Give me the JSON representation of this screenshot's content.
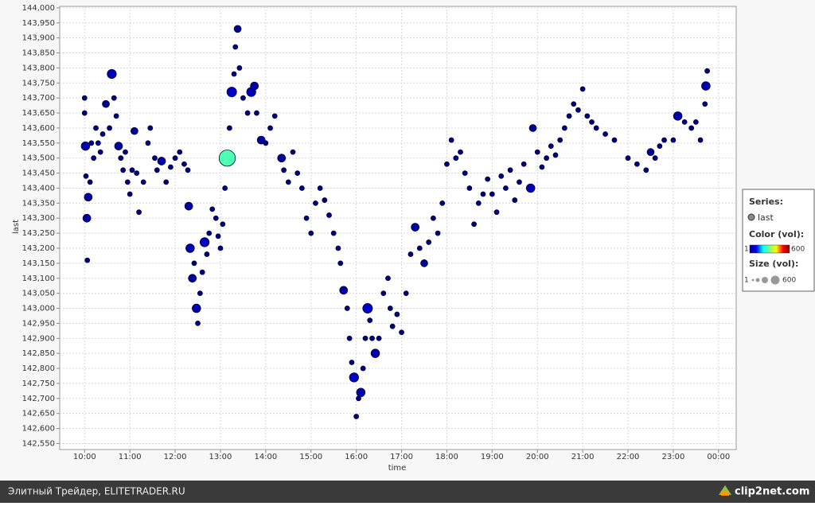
{
  "chart_data": {
    "type": "bubble",
    "x_label": "time",
    "y_label": "last",
    "xlim": [
      9.45,
      24.39
    ],
    "ylim": [
      142530,
      144005
    ],
    "grid": true,
    "xticks": [
      {
        "value": 10,
        "label": "10:00"
      },
      {
        "value": 11,
        "label": "11:00"
      },
      {
        "value": 12,
        "label": "12:00"
      },
      {
        "value": 13,
        "label": "13:00"
      },
      {
        "value": 14,
        "label": "14:00"
      },
      {
        "value": 15,
        "label": "15:00"
      },
      {
        "value": 16,
        "label": "16:00"
      },
      {
        "value": 17,
        "label": "17:00"
      },
      {
        "value": 18,
        "label": "18:00"
      },
      {
        "value": 19,
        "label": "19:00"
      },
      {
        "value": 20,
        "label": "20:00"
      },
      {
        "value": 21,
        "label": "21:00"
      },
      {
        "value": 22,
        "label": "22:00"
      },
      {
        "value": 23,
        "label": "23:00"
      },
      {
        "value": 24,
        "label": "00:00"
      }
    ],
    "yticks": [
      {
        "value": 142550,
        "label": "142,550"
      },
      {
        "value": 142600,
        "label": "142,600"
      },
      {
        "value": 142650,
        "label": "142,650"
      },
      {
        "value": 142700,
        "label": "142,700"
      },
      {
        "value": 142750,
        "label": "142,750"
      },
      {
        "value": 142800,
        "label": "142,800"
      },
      {
        "value": 142850,
        "label": "142,850"
      },
      {
        "value": 142900,
        "label": "142,900"
      },
      {
        "value": 142950,
        "label": "142,950"
      },
      {
        "value": 143000,
        "label": "143,000"
      },
      {
        "value": 143050,
        "label": "143,050"
      },
      {
        "value": 143100,
        "label": "143,100"
      },
      {
        "value": 143150,
        "label": "143,150"
      },
      {
        "value": 143200,
        "label": "143,200"
      },
      {
        "value": 143250,
        "label": "143,250"
      },
      {
        "value": 143300,
        "label": "143,300"
      },
      {
        "value": 143350,
        "label": "143,350"
      },
      {
        "value": 143400,
        "label": "143,400"
      },
      {
        "value": 143450,
        "label": "143,450"
      },
      {
        "value": 143500,
        "label": "143,500"
      },
      {
        "value": 143550,
        "label": "143,550"
      },
      {
        "value": 143600,
        "label": "143,600"
      },
      {
        "value": 143650,
        "label": "143,650"
      },
      {
        "value": 143700,
        "label": "143,700"
      },
      {
        "value": 143750,
        "label": "143,750"
      },
      {
        "value": 143800,
        "label": "143,800"
      },
      {
        "value": 143850,
        "label": "143,850"
      },
      {
        "value": 143900,
        "label": "143,900"
      },
      {
        "value": 143950,
        "label": "143,950"
      },
      {
        "value": 144000,
        "label": "144,000"
      }
    ],
    "legend": {
      "title": "Series:",
      "color_title": "Color (vol):",
      "size_title": "Size (vol):"
    },
    "color_scale": {
      "min": 1,
      "max": 600,
      "colors": [
        "#00007f",
        "#0000ff",
        "#00ffff",
        "#7fff7f",
        "#ffff00",
        "#ff0000",
        "#7f0000"
      ]
    },
    "size_scale": {
      "min": 1,
      "max": 600
    },
    "series": [
      {
        "name": "last",
        "edge_color": "#000033",
        "x": [
          10.0,
          10.0,
          10.02,
          10.03,
          10.05,
          10.06,
          10.08,
          10.12,
          10.15,
          10.2,
          10.25,
          10.3,
          10.35,
          10.4,
          10.47,
          10.55,
          10.6,
          10.65,
          10.7,
          10.75,
          10.8,
          10.85,
          10.9,
          10.95,
          11.0,
          11.05,
          11.1,
          11.15,
          11.2,
          11.3,
          11.4,
          11.45,
          11.55,
          11.6,
          11.7,
          11.8,
          11.9,
          12.0,
          12.1,
          12.2,
          12.28,
          12.3,
          12.33,
          12.38,
          12.42,
          12.47,
          12.5,
          12.55,
          12.6,
          12.65,
          12.7,
          12.75,
          12.82,
          12.9,
          12.95,
          13.0,
          13.05,
          13.1,
          13.15,
          13.2,
          13.25,
          13.3,
          13.33,
          13.38,
          13.42,
          13.5,
          13.6,
          13.68,
          13.75,
          13.8,
          13.9,
          14.0,
          14.1,
          14.2,
          14.35,
          14.4,
          14.5,
          14.6,
          14.7,
          14.8,
          14.9,
          15.0,
          15.1,
          15.2,
          15.3,
          15.4,
          15.5,
          15.6,
          15.65,
          15.72,
          15.8,
          15.85,
          15.9,
          15.95,
          16.0,
          16.05,
          16.1,
          16.15,
          16.2,
          16.25,
          16.3,
          16.35,
          16.42,
          16.5,
          16.6,
          16.7,
          16.75,
          16.8,
          16.9,
          17.0,
          17.1,
          17.2,
          17.3,
          17.4,
          17.5,
          17.6,
          17.7,
          17.8,
          17.9,
          18.0,
          18.1,
          18.2,
          18.3,
          18.4,
          18.5,
          18.6,
          18.7,
          18.8,
          18.9,
          19.0,
          19.1,
          19.2,
          19.3,
          19.4,
          19.5,
          19.6,
          19.7,
          19.85,
          19.9,
          20.0,
          20.1,
          20.2,
          20.3,
          20.4,
          20.5,
          20.6,
          20.7,
          20.8,
          20.9,
          21.0,
          21.1,
          21.2,
          21.3,
          21.5,
          21.7,
          22.0,
          22.2,
          22.4,
          22.5,
          22.6,
          22.7,
          22.8,
          23.0,
          23.1,
          23.25,
          23.4,
          23.5,
          23.6,
          23.7,
          23.72,
          23.75
        ],
        "values": [
          143700,
          143650,
          143540,
          143440,
          143300,
          143160,
          143370,
          143420,
          143550,
          143500,
          143600,
          143550,
          143520,
          143580,
          143680,
          143600,
          143780,
          143700,
          143640,
          143540,
          143500,
          143460,
          143520,
          143420,
          143380,
          143460,
          143590,
          143450,
          143320,
          143420,
          143550,
          143600,
          143500,
          143460,
          143490,
          143420,
          143470,
          143500,
          143520,
          143480,
          143460,
          143340,
          143200,
          143100,
          143150,
          143000,
          142950,
          143050,
          143120,
          143220,
          143180,
          143250,
          143330,
          143300,
          143240,
          143200,
          143280,
          143400,
          143500,
          143600,
          143720,
          143780,
          143870,
          143930,
          143800,
          143700,
          143650,
          143720,
          143740,
          143650,
          143560,
          143550,
          143600,
          143640,
          143500,
          143460,
          143420,
          143520,
          143450,
          143400,
          143300,
          143250,
          143350,
          143400,
          143360,
          143310,
          143250,
          143200,
          143150,
          143060,
          143000,
          142900,
          142820,
          142770,
          142640,
          142700,
          142720,
          142800,
          142900,
          143000,
          142960,
          142900,
          142850,
          142900,
          143050,
          143100,
          143000,
          142940,
          142980,
          142920,
          143050,
          143180,
          143270,
          143200,
          143150,
          143220,
          143300,
          143250,
          143350,
          143480,
          143560,
          143500,
          143520,
          143450,
          143400,
          143280,
          143350,
          143380,
          143430,
          143380,
          143320,
          143440,
          143400,
          143460,
          143360,
          143420,
          143480,
          143400,
          143600,
          143520,
          143470,
          143500,
          143540,
          143510,
          143560,
          143600,
          143640,
          143680,
          143660,
          143730,
          143640,
          143620,
          143600,
          143580,
          143560,
          143500,
          143480,
          143460,
          143520,
          143500,
          143540,
          143560,
          143560,
          143640,
          143620,
          143600,
          143620,
          143560,
          143680,
          143740,
          143790
        ],
        "sizes": [
          3,
          3,
          40,
          3,
          30,
          3,
          30,
          3,
          3,
          3,
          3,
          3,
          3,
          3,
          20,
          3,
          50,
          3,
          3,
          30,
          3,
          3,
          3,
          3,
          3,
          3,
          20,
          3,
          3,
          3,
          3,
          3,
          3,
          3,
          30,
          3,
          3,
          3,
          3,
          3,
          3,
          30,
          40,
          30,
          3,
          40,
          3,
          3,
          3,
          50,
          3,
          3,
          3,
          3,
          3,
          3,
          3,
          3,
          260,
          3,
          60,
          3,
          3,
          20,
          3,
          3,
          3,
          50,
          30,
          3,
          30,
          3,
          3,
          3,
          30,
          3,
          3,
          3,
          3,
          3,
          3,
          3,
          3,
          3,
          3,
          3,
          3,
          3,
          3,
          30,
          3,
          3,
          3,
          50,
          3,
          3,
          40,
          3,
          3,
          60,
          3,
          3,
          40,
          3,
          3,
          3,
          3,
          3,
          3,
          3,
          3,
          3,
          30,
          3,
          20,
          3,
          3,
          3,
          3,
          3,
          3,
          3,
          3,
          3,
          3,
          3,
          3,
          3,
          3,
          3,
          3,
          3,
          3,
          3,
          3,
          3,
          3,
          40,
          20,
          3,
          3,
          3,
          3,
          3,
          3,
          3,
          3,
          3,
          3,
          3,
          3,
          3,
          3,
          3,
          3,
          3,
          3,
          3,
          20,
          3,
          3,
          3,
          3,
          40,
          3,
          3,
          3,
          3,
          3,
          40,
          3
        ]
      }
    ]
  },
  "footer": {
    "left": "Элитный Трейдер, ELITETRADER.RU",
    "logo": "clip2net.com"
  }
}
